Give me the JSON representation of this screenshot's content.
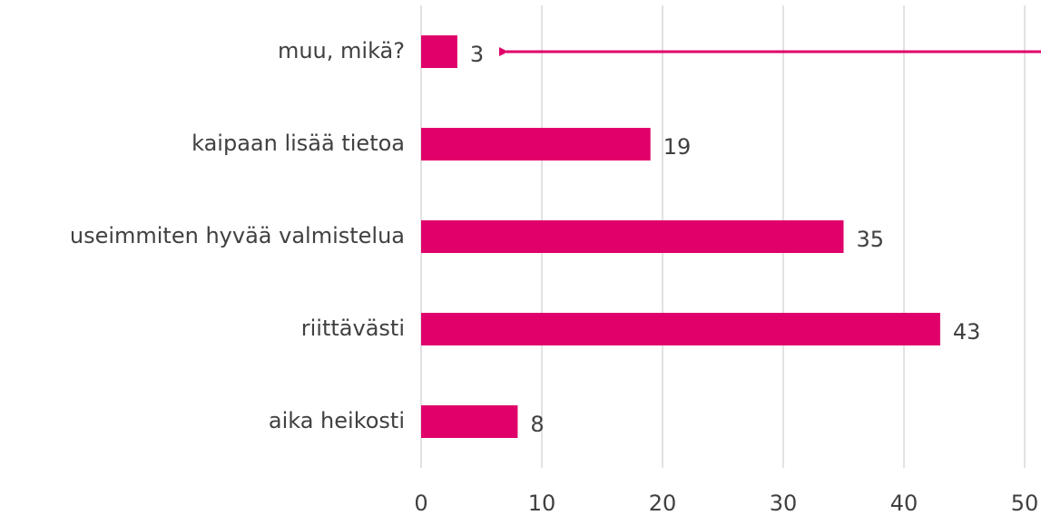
{
  "chart_data": {
    "type": "hbar",
    "categories": [
      "muu, mikä?",
      "kaipaan lisää tietoa",
      "useimmiten hyvää valmistelua",
      "riittävästi",
      "aika heikosti"
    ],
    "values": [
      3,
      19,
      35,
      43,
      8
    ],
    "color": "#e0006a",
    "xlim": [
      0,
      50
    ],
    "xticks": [
      0,
      10,
      20,
      30,
      40,
      50
    ],
    "grid": true
  }
}
